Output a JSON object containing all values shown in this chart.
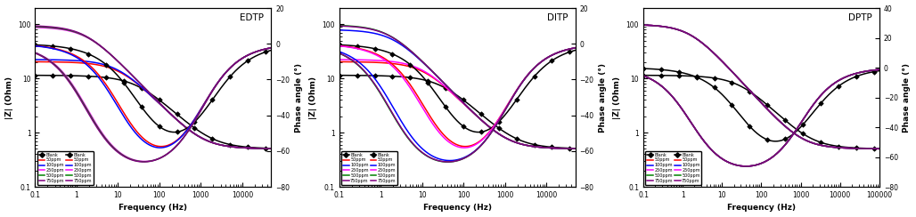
{
  "panels": [
    "EDTP",
    "DITP",
    "DPTP"
  ],
  "xlabel": "Frequency (Hz)",
  "ylabel_left": "|Z| (Ohm)",
  "ylabel_right": "Phase angle (°)",
  "colors": {
    "Blank": "#000000",
    "50ppm": "#ff0000",
    "100ppm": "#0000ff",
    "250ppm": "#ff00ff",
    "500ppm": "#008000",
    "750ppm": "#800080"
  },
  "EDTP": {
    "f_range": [
      0.1,
      50000
    ],
    "zlim": [
      0.1,
      200
    ],
    "phase_range": [
      -80,
      20
    ],
    "phase_ticks": [
      -80,
      -60,
      -40,
      -20,
      0,
      20
    ],
    "curves": [
      {
        "label": "Blank",
        "R_sol": 0.5,
        "R_ct": 11.0,
        "Q": 0.0015,
        "n": 0.78,
        "marker": true
      },
      {
        "label": "50ppm",
        "R_sol": 0.5,
        "R_ct": 20.0,
        "Q": 0.0015,
        "n": 0.82,
        "marker": false
      },
      {
        "label": "100ppm",
        "R_sol": 0.5,
        "R_ct": 22.0,
        "Q": 0.0015,
        "n": 0.82,
        "marker": false
      },
      {
        "label": "250ppm",
        "R_sol": 0.5,
        "R_ct": 90.0,
        "Q": 0.0015,
        "n": 0.82,
        "marker": false
      },
      {
        "label": "500ppm",
        "R_sol": 0.5,
        "R_ct": 93.0,
        "Q": 0.0015,
        "n": 0.82,
        "marker": false
      },
      {
        "label": "750ppm",
        "R_sol": 0.5,
        "R_ct": 96.0,
        "Q": 0.0015,
        "n": 0.82,
        "marker": false
      }
    ]
  },
  "DITP": {
    "f_range": [
      0.1,
      50000
    ],
    "zlim": [
      0.1,
      200
    ],
    "phase_range": [
      -80,
      20
    ],
    "phase_ticks": [
      -80,
      -60,
      -40,
      -20,
      0,
      20
    ],
    "curves": [
      {
        "label": "Blank",
        "R_sol": 0.5,
        "R_ct": 11.0,
        "Q": 0.0015,
        "n": 0.78,
        "marker": true
      },
      {
        "label": "50ppm",
        "R_sol": 0.5,
        "R_ct": 20.0,
        "Q": 0.0015,
        "n": 0.82,
        "marker": false
      },
      {
        "label": "100ppm",
        "R_sol": 0.5,
        "R_ct": 80.0,
        "Q": 0.0015,
        "n": 0.82,
        "marker": false
      },
      {
        "label": "250ppm",
        "R_sol": 0.5,
        "R_ct": 22.0,
        "Q": 0.0015,
        "n": 0.82,
        "marker": false
      },
      {
        "label": "500ppm",
        "R_sol": 0.5,
        "R_ct": 98.0,
        "Q": 0.0015,
        "n": 0.82,
        "marker": false
      },
      {
        "label": "750ppm",
        "R_sol": 0.5,
        "R_ct": 96.0,
        "Q": 0.0015,
        "n": 0.82,
        "marker": false
      }
    ]
  },
  "DPTP": {
    "f_range": [
      0.1,
      100000
    ],
    "zlim": [
      0.1,
      200
    ],
    "phase_range": [
      -80,
      40
    ],
    "phase_ticks": [
      -80,
      -60,
      -40,
      -20,
      0,
      20,
      40
    ],
    "curves": [
      {
        "label": "Blank",
        "R_sol": 0.5,
        "R_ct": 11.0,
        "Q": 0.0015,
        "n": 0.78,
        "marker": true
      },
      {
        "label": "50ppm",
        "R_sol": 0.5,
        "R_ct": 100.0,
        "Q": 0.0015,
        "n": 0.82,
        "marker": false
      },
      {
        "label": "100ppm",
        "R_sol": 0.5,
        "R_ct": 100.0,
        "Q": 0.0015,
        "n": 0.82,
        "marker": false
      },
      {
        "label": "250ppm",
        "R_sol": 0.5,
        "R_ct": 100.0,
        "Q": 0.0015,
        "n": 0.82,
        "marker": false
      },
      {
        "label": "500ppm",
        "R_sol": 0.5,
        "R_ct": 100.0,
        "Q": 0.0015,
        "n": 0.82,
        "marker": false
      },
      {
        "label": "750ppm",
        "R_sol": 0.5,
        "R_ct": 100.0,
        "Q": 0.0015,
        "n": 0.82,
        "marker": false
      }
    ]
  }
}
